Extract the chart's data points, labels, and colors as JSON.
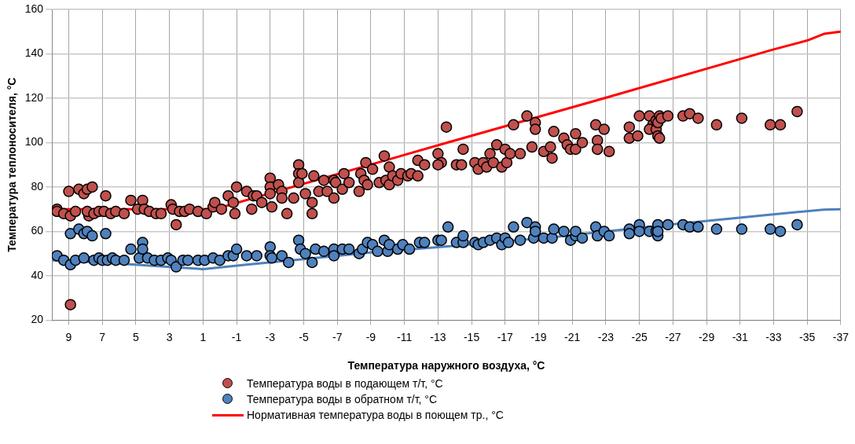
{
  "chart_data": {
    "type": "scatter",
    "xlabel": "Температура наружного воздуха, °C",
    "ylabel": "Температура теплоносителя, °C",
    "xlim": [
      10,
      -37
    ],
    "xticks": [
      9,
      7,
      5,
      3,
      1,
      -1,
      -3,
      -5,
      -7,
      -9,
      -11,
      -13,
      -15,
      -17,
      -19,
      -21,
      -23,
      -25,
      -27,
      -29,
      -31,
      -33,
      -35,
      -37
    ],
    "ylim": [
      20,
      160
    ],
    "yticks": [
      20,
      40,
      60,
      80,
      100,
      120,
      140,
      160
    ],
    "grid": true,
    "legend": "bottom",
    "marker": "circle",
    "series": [
      {
        "name": "Температура воды в подающем т/т, °C",
        "color": "#c0504d",
        "x": [
          9.7,
          9.7,
          9.3,
          9.0,
          8.9,
          8.9,
          8.6,
          8.4,
          8.1,
          7.9,
          7.8,
          7.6,
          7.9,
          7.5,
          7.2,
          6.9,
          6.8,
          6.5,
          6.2,
          5.7,
          5.3,
          4.9,
          4.6,
          4.5,
          4.2,
          3.8,
          3.5,
          2.9,
          2.8,
          2.6,
          2.4,
          2.1,
          1.8,
          1.3,
          0.8,
          0.4,
          0.3,
          -0.1,
          -0.5,
          -0.8,
          -0.9,
          -1.0,
          -1.6,
          -1.9,
          -2.0,
          -2.2,
          -2.5,
          -3.0,
          -3.0,
          -3.0,
          -3.1,
          -3.5,
          -3.7,
          -3.7,
          -4.0,
          -4.4,
          -4.7,
          -4.7,
          -4.7,
          -4.9,
          -5.1,
          -5.5,
          -5.5,
          -5.6,
          -5.9,
          -6.2,
          -6.4,
          -6.8,
          -6.8,
          -6.9,
          -7.3,
          -7.4,
          -7.7,
          -8.3,
          -8.4,
          -8.6,
          -8.7,
          -8.8,
          -9.1,
          -9.5,
          -9.8,
          -9.9,
          -10.1,
          -10.1,
          -10.3,
          -10.6,
          -10.8,
          -11.2,
          -11.4,
          -11.8,
          -11.8,
          -12.2,
          -13.0,
          -13.2,
          -13.0,
          -13.5,
          -14.1,
          -14.4,
          -14.5,
          -15.2,
          -15.4,
          -15.7,
          -15.9,
          -16.1,
          -16.3,
          -16.5,
          -16.8,
          -17.0,
          -17.1,
          -17.3,
          -17.5,
          -17.9,
          -18.3,
          -18.6,
          -18.8,
          -18.8,
          -19.3,
          -19.7,
          -19.8,
          -19.9,
          -20.5,
          -20.7,
          -20.9,
          -21.2,
          -21.2,
          -21.6,
          -22.4,
          -22.5,
          -22.5,
          -22.9,
          -23.2,
          -24.4,
          -24.4,
          -24.9,
          -25.0,
          -25.6,
          -25.8,
          -25.6,
          -26.0,
          -26.0,
          -26.1,
          -26.2,
          -26.1,
          -26.2,
          -26.3,
          -26.7,
          -27.6,
          -28.0,
          -28.5,
          -29.6,
          -31.1,
          -32.8,
          -33.4,
          -34.4
        ],
        "values": [
          70,
          69,
          68,
          78,
          27,
          67,
          69,
          79,
          77,
          79,
          67,
          80,
          69,
          68,
          69,
          69,
          76,
          68,
          69,
          68,
          74,
          70,
          74,
          70,
          69,
          68,
          68,
          72,
          70,
          63,
          69,
          69,
          70,
          69,
          68,
          71,
          73,
          70,
          76,
          73,
          68,
          80,
          78,
          70,
          76,
          76,
          73,
          84,
          80,
          77,
          71,
          81,
          78,
          75,
          68,
          75,
          90,
          86,
          82,
          86,
          77,
          73,
          68,
          85,
          78,
          83,
          78,
          83,
          75,
          82,
          79,
          86,
          82,
          78,
          86,
          83,
          91,
          81,
          88,
          82,
          94,
          83,
          89,
          81,
          85,
          83,
          86,
          85,
          86,
          85,
          92,
          90,
          95,
          91,
          90,
          107,
          90,
          90,
          97,
          91,
          88,
          91,
          89,
          95,
          91,
          99,
          89,
          97,
          91,
          95,
          108,
          95,
          112,
          98,
          109,
          106,
          96,
          98,
          93,
          105,
          102,
          99,
          97,
          97,
          104,
          100,
          108,
          101,
          97,
          106,
          96,
          107,
          102,
          103,
          112,
          112,
          108,
          106,
          110,
          106,
          103,
          112,
          109,
          102,
          111,
          112,
          112,
          113,
          111,
          108,
          111,
          108,
          108,
          114
        ]
      },
      {
        "name": "Температура воды в обратном т/т, °C",
        "color": "#4f81bd",
        "x": [
          9.7,
          9.3,
          8.9,
          8.9,
          8.6,
          8.4,
          8.1,
          7.9,
          7.6,
          8.1,
          7.5,
          7.2,
          6.8,
          7.0,
          6.7,
          6.4,
          6.2,
          5.7,
          5.3,
          4.8,
          4.6,
          4.6,
          4.3,
          3.9,
          3.5,
          3.1,
          2.9,
          2.6,
          2.2,
          1.9,
          1.3,
          0.9,
          0.4,
          0.0,
          -0.5,
          -0.8,
          -1.0,
          -1.6,
          -2.2,
          -3.0,
          -3.0,
          -3.1,
          -3.7,
          -4.1,
          -4.7,
          -4.8,
          -5.1,
          -5.5,
          -5.7,
          -6.2,
          -6.8,
          -6.8,
          -7.3,
          -7.7,
          -8.3,
          -8.5,
          -8.8,
          -9.1,
          -9.4,
          -9.8,
          -10.0,
          -10.1,
          -10.6,
          -10.9,
          -11.3,
          -11.9,
          -12.2,
          -13.0,
          -13.2,
          -13.6,
          -14.1,
          -14.5,
          -14.5,
          -15.2,
          -15.4,
          -15.7,
          -16.1,
          -16.5,
          -16.8,
          -17.0,
          -17.2,
          -17.5,
          -17.9,
          -18.3,
          -18.7,
          -18.8,
          -18.8,
          -19.3,
          -19.8,
          -19.9,
          -20.5,
          -20.9,
          -21.2,
          -21.2,
          -21.6,
          -22.4,
          -22.5,
          -22.9,
          -23.2,
          -24.4,
          -24.4,
          -25.0,
          -25.0,
          -25.6,
          -26.0,
          -26.1,
          -26.1,
          -26.1,
          -26.7,
          -27.6,
          -28.0,
          -28.5,
          -29.6,
          -31.1,
          -32.8,
          -33.4,
          -34.4
        ],
        "values": [
          49,
          47,
          45,
          59,
          47,
          61,
          59,
          60,
          58,
          48,
          47,
          48,
          59,
          47,
          47,
          48,
          47,
          47,
          52,
          48,
          55,
          52,
          48,
          47,
          47,
          48,
          47,
          44,
          47,
          47,
          47,
          47,
          48,
          47,
          49,
          49,
          52,
          49,
          49,
          53,
          49,
          48,
          49,
          46,
          56,
          52,
          50,
          46,
          52,
          51,
          52,
          49,
          52,
          52,
          50,
          52,
          55,
          54,
          51,
          56,
          51,
          54,
          52,
          54,
          52,
          55,
          55,
          56,
          56,
          62,
          55,
          55,
          58,
          55,
          54,
          55,
          56,
          57,
          54,
          57,
          55,
          62,
          56,
          64,
          57,
          62,
          60,
          57,
          57,
          61,
          60,
          56,
          58,
          60,
          57,
          62,
          58,
          60,
          58,
          61,
          59,
          63,
          60,
          60,
          60,
          63,
          58,
          60,
          63,
          63,
          62,
          62,
          61,
          61,
          61,
          60,
          63
        ]
      },
      {
        "name": "Нормативная температура воды в поющем тр., °C",
        "type": "line",
        "marker": "none",
        "color": "#ff0000",
        "x": [
          10,
          0.3,
          -13.8,
          -22.9,
          -33,
          -35,
          -36,
          -37
        ],
        "values": [
          70,
          70,
          100.5,
          120,
          142,
          146,
          149,
          150
        ]
      },
      {
        "type": "line",
        "marker": "none",
        "color": "#4f81bd",
        "x": [
          10,
          7,
          4,
          1,
          -1.6,
          -5,
          -9,
          -14,
          -20,
          -26.7,
          -33,
          -36,
          -37
        ],
        "values": [
          47,
          46,
          44.5,
          43,
          45,
          47.5,
          50.5,
          53.5,
          57.5,
          63,
          67.7,
          69.8,
          70
        ]
      }
    ]
  }
}
